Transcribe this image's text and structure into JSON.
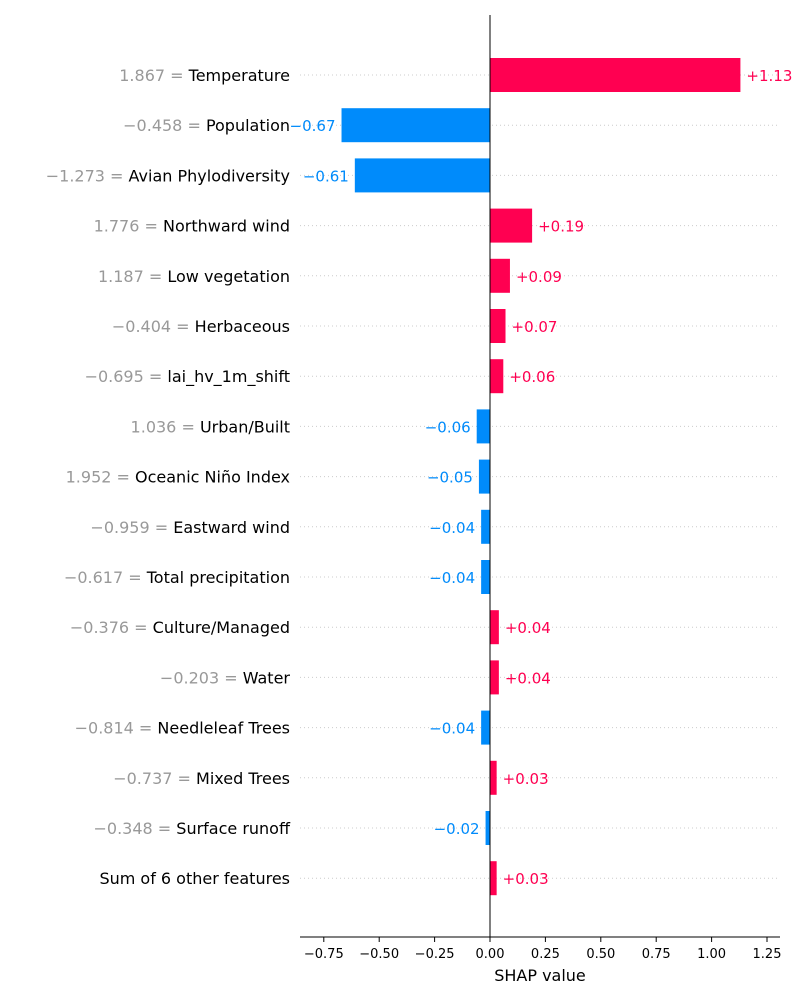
{
  "chart_data": {
    "type": "bar",
    "orientation": "horizontal",
    "xlabel": "SHAP value",
    "xlim": [
      -0.86,
      1.3
    ],
    "xticks": [
      -0.75,
      -0.5,
      -0.25,
      0.0,
      0.25,
      0.5,
      0.75,
      1.0,
      1.25
    ],
    "xtick_labels": [
      "−0.75",
      "−0.50",
      "−0.25",
      "0.00",
      "0.25",
      "0.50",
      "0.75",
      "1.00",
      "1.25"
    ],
    "grid": "horizontal dotted lines per row",
    "colors": {
      "positive": "#ff0051",
      "negative": "#008bfb",
      "feature_value": "#999999"
    },
    "rows": [
      {
        "feature_value": "1.867 =",
        "feature": "Temperature",
        "value": 1.13,
        "label": "+1.13"
      },
      {
        "feature_value": "−0.458 =",
        "feature": "Population",
        "value": -0.67,
        "label": "−0.67"
      },
      {
        "feature_value": "−1.273 =",
        "feature": "Avian Phylodiversity",
        "value": -0.61,
        "label": "−0.61"
      },
      {
        "feature_value": "1.776 =",
        "feature": "Northward wind",
        "value": 0.19,
        "label": "+0.19"
      },
      {
        "feature_value": "1.187 =",
        "feature": "Low vegetation",
        "value": 0.09,
        "label": "+0.09"
      },
      {
        "feature_value": "−0.404 =",
        "feature": "Herbaceous",
        "value": 0.07,
        "label": "+0.07"
      },
      {
        "feature_value": "−0.695 =",
        "feature": "lai_hv_1m_shift",
        "value": 0.06,
        "label": "+0.06"
      },
      {
        "feature_value": "1.036 =",
        "feature": "Urban/Built",
        "value": -0.06,
        "label": "−0.06"
      },
      {
        "feature_value": "1.952 =",
        "feature": "Oceanic Niño Index",
        "value": -0.05,
        "label": "−0.05"
      },
      {
        "feature_value": "−0.959 =",
        "feature": "Eastward wind",
        "value": -0.04,
        "label": "−0.04"
      },
      {
        "feature_value": "−0.617 =",
        "feature": "Total precipitation",
        "value": -0.04,
        "label": "−0.04"
      },
      {
        "feature_value": "−0.376 =",
        "feature": "Culture/Managed",
        "value": 0.04,
        "label": "+0.04"
      },
      {
        "feature_value": "−0.203 =",
        "feature": "Water",
        "value": 0.04,
        "label": "+0.04"
      },
      {
        "feature_value": "−0.814 =",
        "feature": "Needleleaf Trees",
        "value": -0.04,
        "label": "−0.04"
      },
      {
        "feature_value": "−0.737 =",
        "feature": "Mixed Trees",
        "value": 0.03,
        "label": "+0.03"
      },
      {
        "feature_value": "−0.348 =",
        "feature": "Surface runoff",
        "value": -0.02,
        "label": "−0.02"
      },
      {
        "feature_value": "",
        "feature": "Sum of 6 other features",
        "value": 0.03,
        "label": "+0.03"
      }
    ]
  }
}
